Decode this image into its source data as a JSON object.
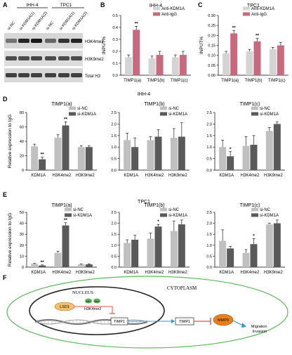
{
  "panels": {
    "A": {
      "letter": "A",
      "group1": "IHH-4",
      "group2": "TPC1",
      "lanes": [
        "si-NC",
        "si-KDM1A(1)",
        "si-KDM1A(2)",
        "si-NC",
        "si-KDM1A(1)",
        "si-KDM1A(2)"
      ],
      "bands": [
        "H3K4me2",
        "H3K9me2",
        "Total H3"
      ]
    },
    "B": {
      "letter": "B"
    },
    "C": {
      "letter": "C"
    },
    "D": {
      "letter": "D",
      "label": "IHH-4"
    },
    "E": {
      "letter": "E",
      "label": "TPC1"
    },
    "F": {
      "letter": "F",
      "cytoplasm": "CYTOPLASM",
      "nucleus": "NUCLEUS",
      "lsd1": "LSD1",
      "h3k4me2": "H3K4me2",
      "timp1": "TIMP1",
      "mmp9": "MMP9",
      "outcome": "Migration\nInvasion",
      "mark": "Me2"
    }
  },
  "chart_data": [
    {
      "id": "B",
      "type": "bar",
      "title": "IHH-4",
      "ylabel": "INPUT%",
      "categories": [
        "TIMP1(a)",
        "TIMP1(b)",
        "TIMP1(c)"
      ],
      "series": [
        {
          "name": "Anti-KDM1A",
          "color": "#d4d4d4",
          "values": [
            0.15,
            0.14,
            0.15
          ]
        },
        {
          "name": "Anti-IgG",
          "color": "#c86a7e",
          "values": [
            0.38,
            0.17,
            0.17
          ]
        }
      ],
      "errors": [
        [
          0.02,
          0.02,
          0.02
        ],
        [
          0.03,
          0.03,
          0.03
        ]
      ],
      "sig": [
        null,
        null,
        null
      ],
      "sig2": [
        "**",
        null,
        null
      ],
      "ylim": [
        0,
        0.5
      ],
      "yticks": [
        0,
        0.1,
        0.2,
        0.3,
        0.4,
        0.5
      ],
      "legend": "top-right"
    },
    {
      "id": "C",
      "type": "bar",
      "title": "TPC1",
      "ylabel": "INPUT%",
      "categories": [
        "TIMP1(a)",
        "TIMP1(b)",
        "TIMP1(c)"
      ],
      "series": [
        {
          "name": "Anti-KDM1A",
          "color": "#d4d4d4",
          "values": [
            0.11,
            0.12,
            0.13
          ]
        },
        {
          "name": "Anti-IgG",
          "color": "#c86a7e",
          "values": [
            0.21,
            0.17,
            0.15
          ]
        }
      ],
      "errors": [
        [
          0.01,
          0.01,
          0.01
        ],
        [
          0.015,
          0.015,
          0.015
        ]
      ],
      "sig": [
        null,
        null,
        null
      ],
      "sig2": [
        "**",
        "**",
        null
      ],
      "ylim": [
        0,
        0.3
      ],
      "yticks": [
        0,
        0.05,
        0.1,
        0.15,
        0.2,
        0.25,
        0.3
      ],
      "legend": "top-right"
    },
    {
      "id": "D1",
      "type": "bar",
      "title": "TIMP1(a)",
      "ylabel": "Relative expression to IgG",
      "categories": [
        "KDM1A",
        "H3K4me2",
        "H3K9me2"
      ],
      "series": [
        {
          "name": "si-NC",
          "color": "#c0c0c0",
          "values": [
            33,
            45,
            32
          ]
        },
        {
          "name": "si-KDM1A",
          "color": "#5a5a5a",
          "values": [
            15,
            62,
            32
          ]
        }
      ],
      "errors": [
        [
          3,
          4,
          2
        ],
        [
          3,
          5,
          2
        ]
      ],
      "sig": [
        null,
        null,
        null
      ],
      "sig2": [
        "**",
        "**",
        null
      ],
      "ylim": [
        0,
        80
      ],
      "yticks": [
        0,
        20,
        40,
        60,
        80
      ],
      "legend": "top-right"
    },
    {
      "id": "D2",
      "type": "bar",
      "title": "TIMP1(b)",
      "ylabel": "",
      "categories": [
        "KDM1A",
        "H3K4me2",
        "H3K9me2"
      ],
      "series": [
        {
          "name": "si-NC",
          "color": "#c0c0c0",
          "values": [
            1.3,
            1.3,
            1.4
          ]
        },
        {
          "name": "si-KDM1A",
          "color": "#5a5a5a",
          "values": [
            1.0,
            1.45,
            1.45
          ]
        }
      ],
      "errors": [
        [
          0.3,
          0.15,
          0.4
        ],
        [
          0.4,
          0.3,
          0.6
        ]
      ],
      "sig": [
        null,
        null,
        null
      ],
      "sig2": [
        null,
        null,
        null
      ],
      "ylim": [
        0,
        2.5
      ],
      "yticks": [
        0,
        0.5,
        1.0,
        1.5,
        2.0,
        2.5
      ],
      "legend": "top-right"
    },
    {
      "id": "D3",
      "type": "bar",
      "title": "TIMP1(c)",
      "ylabel": "",
      "categories": [
        "KDM1A",
        "H3K4me2",
        "H3K9me2"
      ],
      "series": [
        {
          "name": "si-NC",
          "color": "#c0c0c0",
          "values": [
            1.0,
            1.05,
            1.7
          ]
        },
        {
          "name": "si-KDM1A",
          "color": "#5a5a5a",
          "values": [
            0.6,
            1.1,
            2.0
          ]
        }
      ],
      "errors": [
        [
          0.3,
          0.4,
          0.15
        ],
        [
          0.2,
          0.4,
          0.1
        ]
      ],
      "sig": [
        null,
        null,
        null
      ],
      "sig2": [
        "*",
        null,
        null
      ],
      "ylim": [
        0,
        2.5
      ],
      "yticks": [
        0,
        0.5,
        1.0,
        1.5,
        2.0,
        2.5
      ],
      "legend": "top-right"
    },
    {
      "id": "E1",
      "type": "bar",
      "title": "TIMP1(a)",
      "ylabel": "Relative expression to IgG",
      "categories": [
        "KDM1A",
        "H3K4me2",
        "H3K9me2"
      ],
      "series": [
        {
          "name": "si-NC",
          "color": "#c0c0c0",
          "values": [
            3,
            13,
            2.5
          ]
        },
        {
          "name": "si-KDM1A",
          "color": "#5a5a5a",
          "values": [
            1.5,
            38,
            2.5
          ]
        }
      ],
      "errors": [
        [
          0.5,
          1.5,
          0.5
        ],
        [
          0.5,
          2.5,
          0.5
        ]
      ],
      "sig": [
        null,
        null,
        null
      ],
      "sig2": [
        "**",
        "**",
        null
      ],
      "ylim": [
        0,
        50
      ],
      "yticks": [
        0,
        10,
        20,
        30,
        40,
        50
      ],
      "legend": "top-right"
    },
    {
      "id": "E2",
      "type": "bar",
      "title": "TIMP1(b)",
      "ylabel": "",
      "categories": [
        "KDM1A",
        "H3K4me2",
        "H3K9me2"
      ],
      "series": [
        {
          "name": "si-NC",
          "color": "#c0c0c0",
          "values": [
            1.1,
            1.3,
            1.65
          ]
        },
        {
          "name": "si-KDM1A",
          "color": "#5a5a5a",
          "values": [
            1.25,
            1.85,
            1.95
          ]
        }
      ],
      "errors": [
        [
          0.15,
          0.25,
          0.45
        ],
        [
          0.2,
          0.1,
          0.2
        ]
      ],
      "sig": [
        null,
        null,
        null
      ],
      "sig2": [
        null,
        "*",
        null
      ],
      "ylim": [
        0,
        2.5
      ],
      "yticks": [
        0,
        0.5,
        1.0,
        1.5,
        2.0,
        2.5
      ],
      "legend": "top-right"
    },
    {
      "id": "E3",
      "type": "bar",
      "title": "TIMP1(c)",
      "ylabel": "",
      "categories": [
        "KDM1A",
        "H3K4me2",
        "H3K9me2"
      ],
      "series": [
        {
          "name": "si-NC",
          "color": "#c0c0c0",
          "values": [
            1.2,
            0.65,
            1.95
          ]
        },
        {
          "name": "si-KDM1A",
          "color": "#5a5a5a",
          "values": [
            0.85,
            1.05,
            2.0
          ]
        }
      ],
      "errors": [
        [
          0.5,
          0.15,
          0.05
        ],
        [
          0.1,
          0.25,
          0.15
        ]
      ],
      "sig": [
        null,
        null,
        null
      ],
      "sig2": [
        null,
        "*",
        null
      ],
      "ylim": [
        0,
        2.5
      ],
      "yticks": [
        0,
        0.5,
        1.0,
        1.5,
        2.0,
        2.5
      ],
      "legend": "top-right"
    }
  ]
}
